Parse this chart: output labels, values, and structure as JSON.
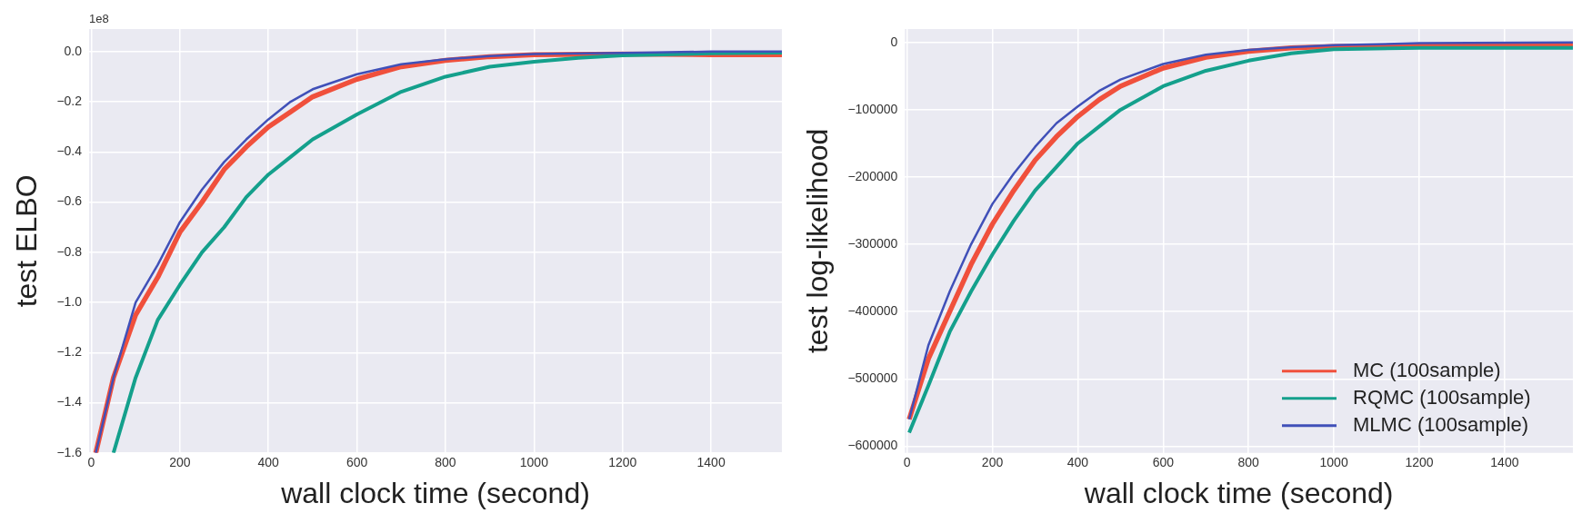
{
  "chart_data": [
    {
      "type": "line",
      "xlabel": "wall clock time (second)",
      "ylabel": "test ELBO",
      "annotations": [
        "1e8"
      ],
      "xlim": [
        -5,
        1560
      ],
      "xticks": [
        0,
        200,
        400,
        600,
        800,
        1000,
        1200,
        1400
      ],
      "ylim": [
        -1.6,
        0.09
      ],
      "yticks": [
        {
          "value": -1.6,
          "label": "−1.6"
        },
        {
          "value": -1.4,
          "label": "−1.4"
        },
        {
          "value": -1.2,
          "label": "−1.2"
        },
        {
          "value": -1.0,
          "label": "−1.0"
        },
        {
          "value": -0.8,
          "label": "−0.8"
        },
        {
          "value": -0.6,
          "label": "−0.6"
        },
        {
          "value": -0.4,
          "label": "−0.4"
        },
        {
          "value": -0.2,
          "label": "−0.2"
        },
        {
          "value": 0,
          "label": "0.0"
        }
      ],
      "grid": true,
      "legend": false,
      "series": [
        {
          "color": "#f0503c",
          "x": [
            10,
            50,
            100,
            150,
            200,
            250,
            300,
            350,
            400,
            450,
            500,
            600,
            700,
            800,
            900,
            1000,
            1200,
            1400,
            1560
          ],
          "values": [
            -1.6,
            -1.3,
            -1.05,
            -0.9,
            -0.72,
            -0.6,
            -0.47,
            -0.38,
            -0.3,
            -0.24,
            -0.18,
            -0.11,
            -0.06,
            -0.035,
            -0.02,
            -0.012,
            -0.01,
            -0.012,
            -0.012
          ]
        },
        {
          "color": "#14a08c",
          "x": [
            50,
            100,
            150,
            200,
            250,
            300,
            350,
            400,
            450,
            500,
            600,
            700,
            800,
            900,
            1000,
            1100,
            1200,
            1400,
            1560
          ],
          "values": [
            -1.6,
            -1.3,
            -1.07,
            -0.93,
            -0.8,
            -0.7,
            -0.58,
            -0.49,
            -0.42,
            -0.35,
            -0.25,
            -0.16,
            -0.1,
            -0.06,
            -0.04,
            -0.025,
            -0.015,
            -0.007,
            -0.004
          ]
        },
        {
          "color": "#4050b8",
          "x": [
            10,
            50,
            100,
            150,
            200,
            250,
            300,
            350,
            400,
            450,
            500,
            600,
            700,
            800,
            900,
            1000,
            1200,
            1400,
            1560
          ],
          "values": [
            -1.6,
            -1.3,
            -1.0,
            -0.85,
            -0.68,
            -0.55,
            -0.44,
            -0.35,
            -0.27,
            -0.2,
            -0.15,
            -0.09,
            -0.05,
            -0.03,
            -0.018,
            -0.01,
            -0.005,
            0.0,
            0.0
          ]
        }
      ]
    },
    {
      "type": "line",
      "xlabel": "wall clock time (second)",
      "ylabel": "test log-likelihood",
      "xlim": [
        -5,
        1560
      ],
      "xticks": [
        0,
        200,
        400,
        600,
        800,
        1000,
        1200,
        1400
      ],
      "ylim": [
        -610000,
        20000
      ],
      "yticks": [
        {
          "value": -600000,
          "label": "−600000"
        },
        {
          "value": -500000,
          "label": "−500000"
        },
        {
          "value": -400000,
          "label": "−400000"
        },
        {
          "value": -300000,
          "label": "−300000"
        },
        {
          "value": -200000,
          "label": "−200000"
        },
        {
          "value": -100000,
          "label": "−100000"
        },
        0
      ],
      "grid": true,
      "legend": "bottom right",
      "series": [
        {
          "name": "MC (100sample)",
          "color": "#f0503c",
          "x": [
            5,
            50,
            100,
            150,
            200,
            250,
            300,
            350,
            400,
            450,
            500,
            600,
            700,
            800,
            900,
            1000,
            1200,
            1560
          ],
          "values": [
            -560000,
            -470000,
            -400000,
            -330000,
            -270000,
            -220000,
            -175000,
            -140000,
            -110000,
            -85000,
            -65000,
            -38000,
            -22000,
            -13000,
            -8000,
            -6000,
            -5000,
            -4000
          ]
        },
        {
          "name": "RQMC (100sample)",
          "color": "#14a08c",
          "x": [
            5,
            50,
            100,
            150,
            200,
            250,
            300,
            350,
            400,
            450,
            500,
            600,
            700,
            800,
            900,
            1000,
            1200,
            1560
          ],
          "values": [
            -580000,
            -510000,
            -430000,
            -370000,
            -315000,
            -265000,
            -220000,
            -185000,
            -150000,
            -125000,
            -100000,
            -65000,
            -42000,
            -27000,
            -16000,
            -10000,
            -8000,
            -8000
          ]
        },
        {
          "name": "MLMC (100sample)",
          "color": "#4050b8",
          "x": [
            5,
            50,
            100,
            150,
            200,
            250,
            300,
            350,
            400,
            450,
            500,
            600,
            700,
            800,
            900,
            1000,
            1200,
            1560
          ],
          "values": [
            -560000,
            -450000,
            -370000,
            -300000,
            -240000,
            -195000,
            -155000,
            -120000,
            -95000,
            -72000,
            -55000,
            -32000,
            -18000,
            -11000,
            -7000,
            -4000,
            -1000,
            0
          ]
        }
      ]
    }
  ]
}
